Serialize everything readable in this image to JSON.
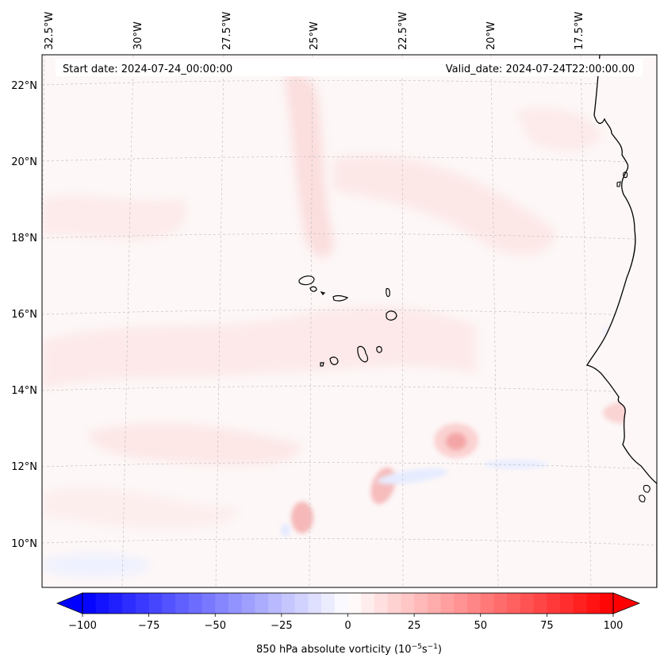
{
  "header": {
    "start_date": "Start date: 2024-07-24_00:00:00",
    "valid_date": "Valid_date: 2024-07-24T22:00:00.00"
  },
  "map": {
    "lon_labels": [
      "32.5°W",
      "30°W",
      "27.5°W",
      "25°W",
      "22.5°W",
      "20°W",
      "17.5°W"
    ],
    "lat_labels": [
      "22°N",
      "20°N",
      "18°N",
      "16°N",
      "14°N",
      "12°N",
      "10°N"
    ],
    "colors": {
      "coastline": "#000000",
      "grid": "#bbbbbb"
    }
  },
  "colorbar": {
    "ticks": [
      "−100",
      "−75",
      "−50",
      "−25",
      "0",
      "25",
      "50",
      "75",
      "100"
    ],
    "vmin": -100,
    "vmax": 100,
    "step": 5,
    "label": "850 hPa absolute vorticity (10",
    "label_sup1": "−5",
    "label_mid": "s",
    "label_sup2": "−1",
    "label_end": ")",
    "colors": {
      "min": "#0000ff",
      "mid": "#ffffff",
      "max": "#ff0000"
    }
  }
}
